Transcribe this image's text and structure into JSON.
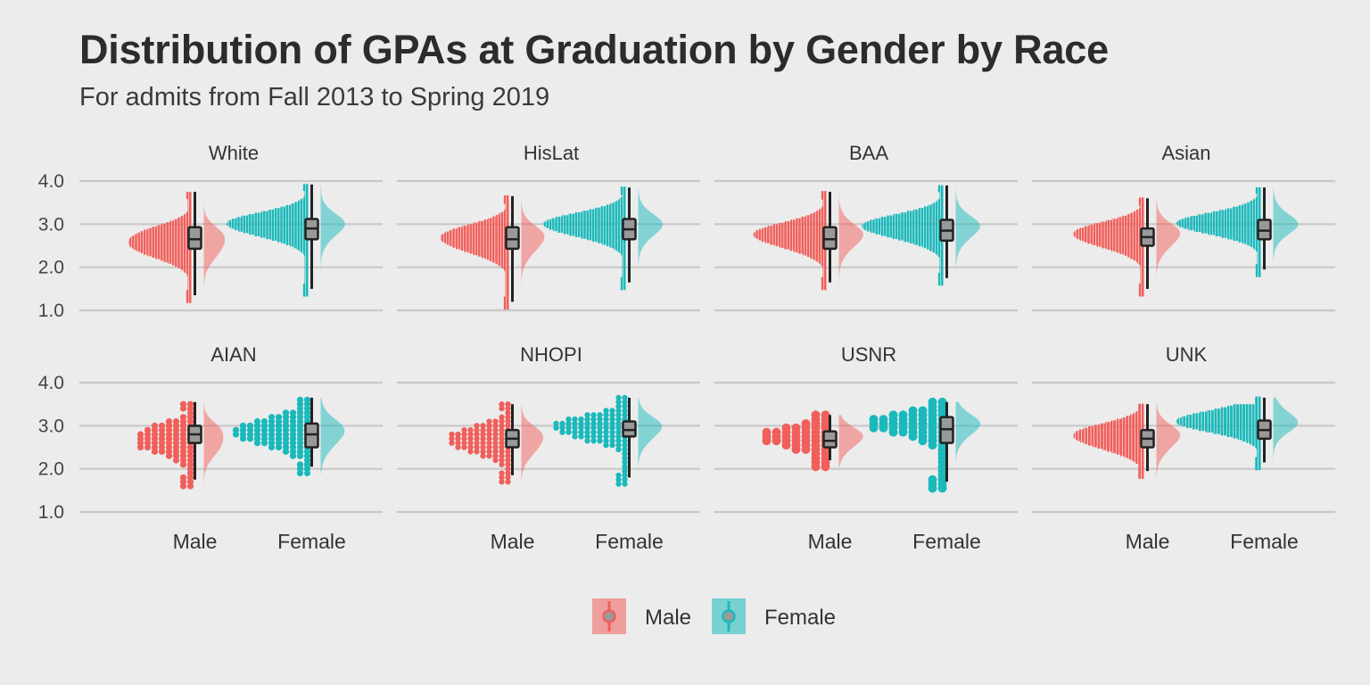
{
  "title": "Distribution of GPAs at Graduation by Gender by Race",
  "subtitle": "For admits from Fall 2013 to Spring 2019",
  "colors": {
    "male": "#f15f5a",
    "female": "#1ab9bb",
    "box": "#999999",
    "grid": "#c8c8c8"
  },
  "chart_data": {
    "type": "raincloud",
    "title": "Distribution of GPAs at Graduation by Gender by Race",
    "subtitle": "For admits from Fall 2013 to Spring 2019",
    "ylim": [
      1.0,
      4.0
    ],
    "yticks": [
      "1.0",
      "2.0",
      "3.0",
      "4.0"
    ],
    "categories": [
      "Male",
      "Female"
    ],
    "legend": {
      "position": "bottom",
      "entries": [
        "Male",
        "Female"
      ]
    },
    "panels": [
      {
        "name": "White",
        "dot_size": 2.0,
        "male": {
          "q1": 2.43,
          "median": 2.65,
          "q3": 2.93,
          "min": 1.2,
          "max": 3.75,
          "mode": 2.5,
          "spread": 0.42
        },
        "female": {
          "q1": 2.65,
          "median": 2.9,
          "q3": 3.12,
          "min": 1.35,
          "max": 3.92,
          "mode": 2.95,
          "spread": 0.4
        }
      },
      {
        "name": "HisLat",
        "dot_size": 2.0,
        "male": {
          "q1": 2.43,
          "median": 2.65,
          "q3": 2.93,
          "min": 1.05,
          "max": 3.65,
          "mode": 2.6,
          "spread": 0.42
        },
        "female": {
          "q1": 2.65,
          "median": 2.88,
          "q3": 3.12,
          "min": 1.5,
          "max": 3.85,
          "mode": 2.95,
          "spread": 0.4
        }
      },
      {
        "name": "BAA",
        "dot_size": 2.0,
        "male": {
          "q1": 2.43,
          "median": 2.65,
          "q3": 2.93,
          "min": 1.5,
          "max": 3.75,
          "mode": 2.7,
          "spread": 0.42
        },
        "female": {
          "q1": 2.62,
          "median": 2.85,
          "q3": 3.1,
          "min": 1.6,
          "max": 3.9,
          "mode": 2.9,
          "spread": 0.4
        }
      },
      {
        "name": "Asian",
        "dot_size": 2.0,
        "male": {
          "q1": 2.5,
          "median": 2.7,
          "q3": 2.9,
          "min": 1.35,
          "max": 3.6,
          "mode": 2.7,
          "spread": 0.4
        },
        "female": {
          "q1": 2.65,
          "median": 2.85,
          "q3": 3.1,
          "min": 1.8,
          "max": 3.85,
          "mode": 3.0,
          "spread": 0.38
        }
      },
      {
        "name": "AIAN",
        "dot_size": 4.0,
        "male": {
          "q1": 2.6,
          "median": 2.8,
          "q3": 3.0,
          "min": 1.6,
          "max": 3.55,
          "mode": 2.6,
          "spread": 0.4
        },
        "female": {
          "q1": 2.5,
          "median": 2.8,
          "q3": 3.05,
          "min": 1.9,
          "max": 3.65,
          "mode": 2.8,
          "spread": 0.45
        }
      },
      {
        "name": "NHOPI",
        "dot_size": 3.5,
        "male": {
          "q1": 2.5,
          "median": 2.7,
          "q3": 2.9,
          "min": 1.7,
          "max": 3.5,
          "mode": 2.6,
          "spread": 0.4
        },
        "female": {
          "q1": 2.75,
          "median": 2.9,
          "q3": 3.1,
          "min": 1.65,
          "max": 3.65,
          "mode": 2.9,
          "spread": 0.38
        }
      },
      {
        "name": "USNR",
        "dot_size": 5.5,
        "male": {
          "q1": 2.5,
          "median": 2.65,
          "q3": 2.87,
          "min": 2.05,
          "max": 3.25,
          "mode": 2.7,
          "spread": 0.35
        },
        "female": {
          "q1": 2.6,
          "median": 2.92,
          "q3": 3.2,
          "min": 1.55,
          "max": 3.55,
          "mode": 3.0,
          "spread": 0.38
        }
      },
      {
        "name": "UNK",
        "dot_size": 2.2,
        "male": {
          "q1": 2.5,
          "median": 2.7,
          "q3": 2.9,
          "min": 1.8,
          "max": 3.5,
          "mode": 2.7,
          "spread": 0.4
        },
        "female": {
          "q1": 2.7,
          "median": 2.9,
          "q3": 3.12,
          "min": 2.0,
          "max": 3.65,
          "mode": 3.1,
          "spread": 0.38
        }
      }
    ]
  }
}
